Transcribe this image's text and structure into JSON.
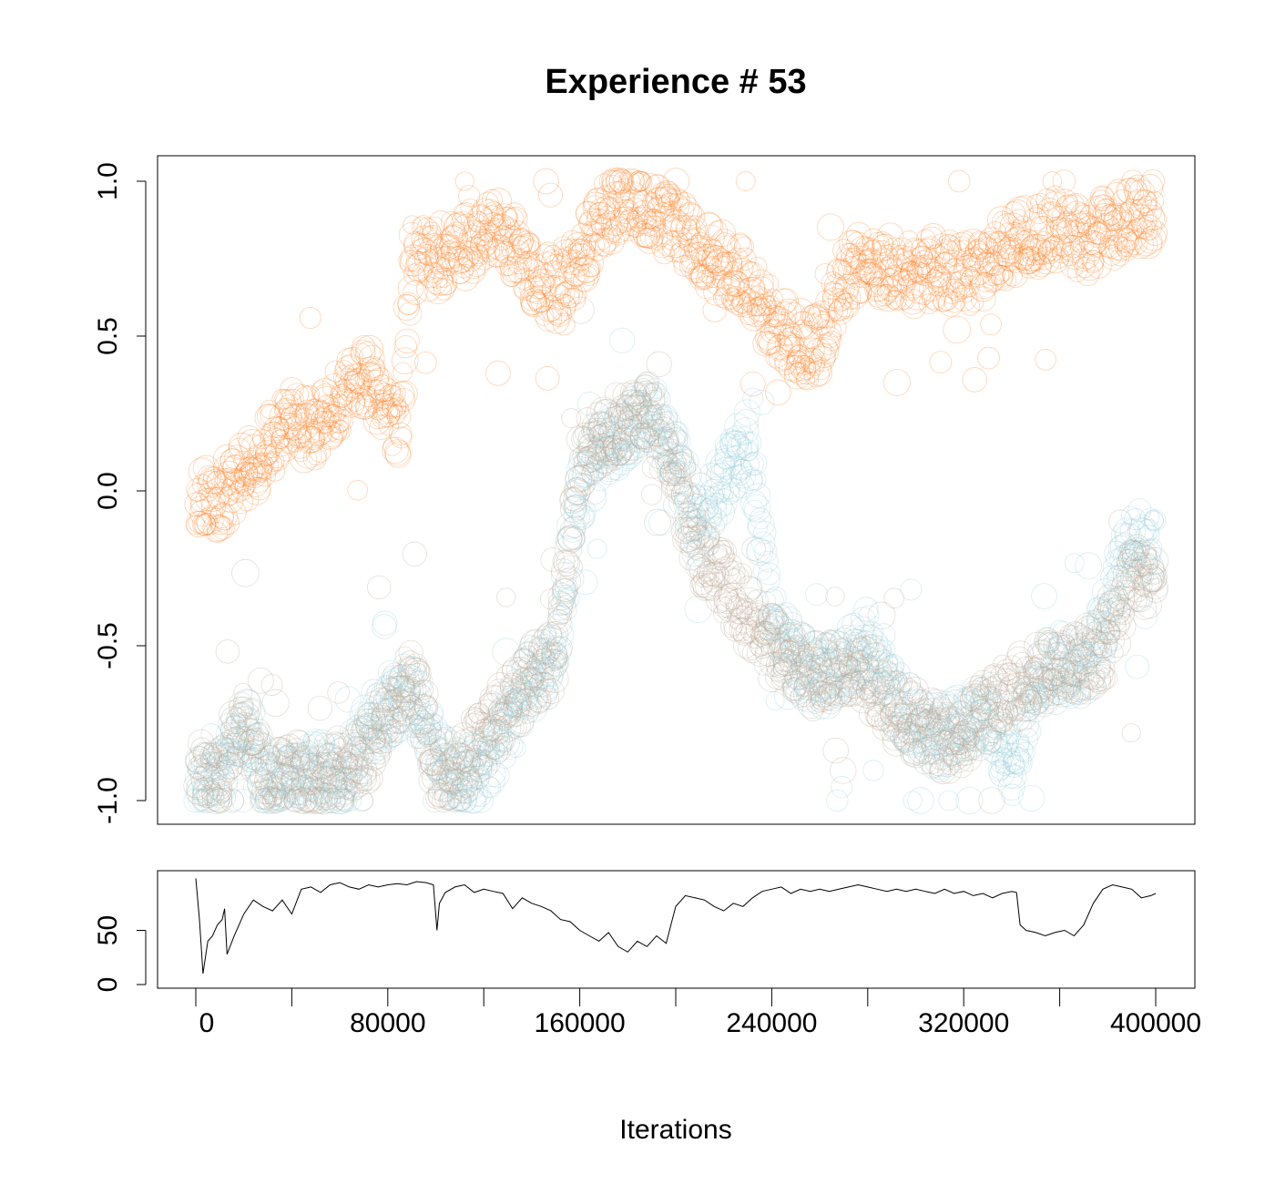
{
  "colors": {
    "orange": "#FF8026",
    "mixed": "#B9A48E",
    "teal": "#8ECBDA",
    "line": "#000000",
    "background": "#FFFFFF"
  },
  "chart_data": [
    {
      "type": "scatter",
      "title": "Experience # 53",
      "xlabel": "",
      "ylabel": "",
      "xlim": [
        0,
        400000
      ],
      "ylim": [
        -1.0,
        1.0
      ],
      "yticks": [
        -1.0,
        -0.5,
        0.0,
        0.5,
        1.0
      ],
      "ytick_labels": [
        "-1.0",
        "-0.5",
        "0.0",
        "0.5",
        "1.0"
      ],
      "marker": "open-circle",
      "grid": false,
      "series": [
        {
          "color": "#FF8026",
          "x": [
            0,
            10000,
            20000,
            30000,
            40000,
            50000,
            60000,
            70000,
            80000,
            85000,
            90000,
            100000,
            110000,
            120000,
            130000,
            140000,
            150000,
            160000,
            170000,
            180000,
            190000,
            200000,
            210000,
            220000,
            230000,
            240000,
            250000,
            260000,
            270000,
            280000,
            290000,
            300000,
            310000,
            320000,
            330000,
            340000,
            350000,
            360000,
            370000,
            380000,
            390000,
            400000
          ],
          "y": [
            0.0,
            -0.05,
            0.05,
            0.15,
            0.22,
            0.2,
            0.3,
            0.38,
            0.25,
            0.2,
            0.75,
            0.75,
            0.78,
            0.85,
            0.82,
            0.7,
            0.65,
            0.75,
            0.9,
            0.95,
            0.9,
            0.85,
            0.78,
            0.72,
            0.68,
            0.55,
            0.48,
            0.45,
            0.7,
            0.75,
            0.72,
            0.7,
            0.72,
            0.7,
            0.72,
            0.8,
            0.82,
            0.85,
            0.8,
            0.85,
            0.88,
            0.88
          ]
        },
        {
          "color": "#8ECBDA",
          "x": [
            0,
            10000,
            20000,
            30000,
            40000,
            50000,
            60000,
            70000,
            80000,
            90000,
            100000,
            110000,
            120000,
            130000,
            140000,
            150000,
            160000,
            170000,
            180000,
            190000,
            200000,
            210000,
            220000,
            230000,
            240000,
            250000,
            260000,
            270000,
            280000,
            290000,
            300000,
            310000,
            320000,
            330000,
            340000,
            350000,
            360000,
            370000,
            380000,
            390000,
            400000
          ],
          "y": [
            -0.95,
            -0.95,
            -0.75,
            -0.95,
            -0.95,
            -0.9,
            -0.95,
            -0.8,
            -0.7,
            -0.65,
            -0.85,
            -0.95,
            -0.9,
            -0.75,
            -0.6,
            -0.55,
            0.0,
            0.15,
            0.2,
            0.25,
            0.1,
            -0.15,
            0.05,
            0.15,
            -0.4,
            -0.55,
            -0.6,
            -0.55,
            -0.5,
            -0.65,
            -0.75,
            -0.8,
            -0.75,
            -0.7,
            -0.9,
            -0.6,
            -0.55,
            -0.6,
            -0.4,
            -0.15,
            -0.2
          ]
        },
        {
          "color": "#B9A48E",
          "x": [
            0,
            10000,
            20000,
            30000,
            40000,
            50000,
            60000,
            70000,
            80000,
            90000,
            100000,
            110000,
            120000,
            130000,
            140000,
            150000,
            160000,
            170000,
            180000,
            190000,
            200000,
            210000,
            220000,
            230000,
            240000,
            250000,
            260000,
            270000,
            280000,
            290000,
            300000,
            310000,
            320000,
            330000,
            340000,
            350000,
            360000,
            370000,
            380000,
            390000,
            400000
          ],
          "y": [
            -0.9,
            -0.95,
            -0.75,
            -0.95,
            -0.9,
            -0.95,
            -0.9,
            -0.85,
            -0.75,
            -0.6,
            -0.9,
            -0.9,
            -0.8,
            -0.7,
            -0.6,
            -0.55,
            0.1,
            0.2,
            0.22,
            0.28,
            0.05,
            -0.2,
            -0.3,
            -0.4,
            -0.5,
            -0.55,
            -0.6,
            -0.55,
            -0.6,
            -0.7,
            -0.75,
            -0.8,
            -0.8,
            -0.7,
            -0.65,
            -0.6,
            -0.58,
            -0.55,
            -0.5,
            -0.3,
            -0.25
          ]
        }
      ]
    },
    {
      "type": "line",
      "xlabel": "Iterations",
      "ylabel": "",
      "xlim": [
        0,
        400000
      ],
      "ylim": [
        0,
        100
      ],
      "yticks": [
        0,
        50
      ],
      "ytick_labels": [
        "0",
        "50"
      ],
      "xticks": [
        0,
        80000,
        160000,
        240000,
        320000,
        400000
      ],
      "xtick_labels": [
        "0",
        "80000",
        "160000",
        "240000",
        "320000",
        "400000"
      ],
      "series": [
        {
          "color": "#000000",
          "x": [
            0,
            1500,
            3000,
            5000,
            7000,
            9000,
            11000,
            12000,
            13000,
            16000,
            20000,
            24000,
            28000,
            32000,
            36000,
            40000,
            44000,
            48000,
            52000,
            56000,
            60000,
            64000,
            68000,
            72000,
            76000,
            80000,
            84000,
            88000,
            92000,
            96000,
            99000,
            100500,
            101500,
            104000,
            108000,
            112000,
            116000,
            120000,
            124000,
            128000,
            132000,
            136000,
            140000,
            144000,
            148000,
            152000,
            156000,
            160000,
            164000,
            168000,
            172000,
            176000,
            180000,
            184000,
            188000,
            192000,
            196000,
            198000,
            200000,
            204000,
            208000,
            212000,
            216000,
            220000,
            224000,
            228000,
            232000,
            236000,
            240000,
            244000,
            248000,
            252000,
            256000,
            260000,
            264000,
            268000,
            272000,
            276000,
            280000,
            284000,
            288000,
            292000,
            296000,
            300000,
            304000,
            308000,
            312000,
            316000,
            320000,
            324000,
            328000,
            332000,
            336000,
            340000,
            342000,
            343500,
            346000,
            350000,
            354000,
            358000,
            362000,
            366000,
            370000,
            374000,
            378000,
            382000,
            386000,
            390000,
            394000,
            398000,
            400000
          ],
          "y": [
            98,
            60,
            10,
            40,
            45,
            55,
            60,
            70,
            28,
            45,
            65,
            78,
            72,
            68,
            78,
            65,
            88,
            90,
            85,
            92,
            94,
            90,
            88,
            92,
            90,
            92,
            93,
            92,
            95,
            94,
            92,
            50,
            75,
            85,
            90,
            92,
            85,
            88,
            86,
            84,
            70,
            80,
            75,
            72,
            68,
            60,
            58,
            50,
            45,
            40,
            48,
            35,
            30,
            40,
            35,
            45,
            38,
            55,
            72,
            82,
            80,
            78,
            72,
            68,
            75,
            72,
            80,
            86,
            88,
            90,
            84,
            88,
            86,
            88,
            86,
            88,
            90,
            92,
            90,
            88,
            86,
            88,
            86,
            88,
            86,
            84,
            88,
            84,
            86,
            82,
            84,
            80,
            84,
            86,
            85,
            55,
            50,
            48,
            45,
            48,
            50,
            45,
            55,
            75,
            88,
            92,
            90,
            88,
            80,
            82,
            84
          ]
        }
      ]
    }
  ]
}
